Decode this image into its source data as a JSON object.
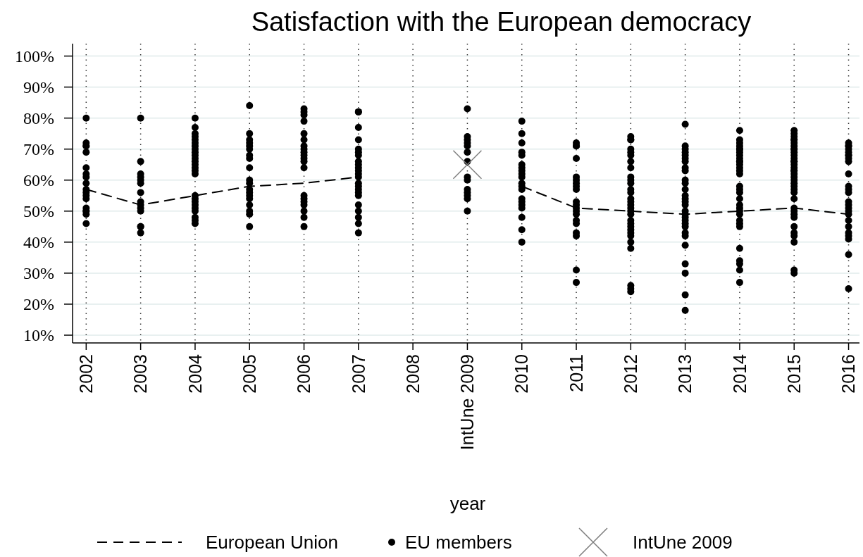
{
  "chart_data": {
    "type": "scatter",
    "title": "Satisfaction with the European democracy",
    "xlabel": "year",
    "x": [
      2002,
      2003,
      2004,
      2005,
      2006,
      2007,
      2008,
      2009,
      2010,
      2011,
      2012,
      2013,
      2014,
      2015,
      2016
    ],
    "xlim": [
      2001.75,
      2016.2
    ],
    "xticks": [
      2002,
      2003,
      2004,
      2005,
      2006,
      2007,
      2008,
      {
        "value": 2009,
        "label": "IntUne 2009"
      },
      2010,
      2011,
      2012,
      2013,
      2014,
      2015,
      2016
    ],
    "ylim": [
      7.5,
      104
    ],
    "yticks": [
      {
        "value": 10,
        "label": "10%"
      },
      {
        "value": 20,
        "label": "20%"
      },
      {
        "value": 30,
        "label": "30%"
      },
      {
        "value": 40,
        "label": "40%"
      },
      {
        "value": 50,
        "label": "50%"
      },
      {
        "value": 60,
        "label": "60%"
      },
      {
        "value": 70,
        "label": "70%"
      },
      {
        "value": 80,
        "label": "80%"
      },
      {
        "value": 90,
        "label": "90%"
      },
      {
        "value": 100,
        "label": "100%"
      }
    ],
    "grid": true,
    "legend": "bottom",
    "series": [
      {
        "name": "European Union",
        "type": "line",
        "color": "#000000",
        "line_style": "dashed",
        "marker": "none",
        "values": [
          57,
          52,
          55,
          58,
          59,
          61,
          null,
          null,
          58,
          51,
          50,
          49,
          50,
          51,
          49
        ]
      },
      {
        "name": "EU members",
        "color": "#000000",
        "marker": "circle",
        "x": [
          2002,
          2002,
          2002,
          2002,
          2002,
          2002,
          2002,
          2002,
          2002,
          2002,
          2002,
          2002,
          2002,
          2002,
          2002,
          2002,
          2002,
          2002,
          2003,
          2003,
          2003,
          2003,
          2003,
          2003,
          2003,
          2003,
          2003,
          2003,
          2003,
          2003,
          2003,
          2003,
          2004,
          2004,
          2004,
          2004,
          2004,
          2004,
          2004,
          2004,
          2004,
          2004,
          2004,
          2004,
          2004,
          2004,
          2004,
          2004,
          2004,
          2004,
          2004,
          2004,
          2004,
          2004,
          2004,
          2004,
          2004,
          2005,
          2005,
          2005,
          2005,
          2005,
          2005,
          2005,
          2005,
          2005,
          2005,
          2005,
          2005,
          2005,
          2005,
          2005,
          2005,
          2005,
          2005,
          2005,
          2006,
          2006,
          2006,
          2006,
          2006,
          2006,
          2006,
          2006,
          2006,
          2006,
          2006,
          2006,
          2006,
          2006,
          2006,
          2006,
          2006,
          2006,
          2006,
          2006,
          2007,
          2007,
          2007,
          2007,
          2007,
          2007,
          2007,
          2007,
          2007,
          2007,
          2007,
          2007,
          2007,
          2007,
          2007,
          2007,
          2007,
          2007,
          2007,
          2007,
          2007,
          2007,
          2007,
          2009,
          2009,
          2009,
          2009,
          2009,
          2009,
          2009,
          2009,
          2009,
          2009,
          2009,
          2009,
          2009,
          2009,
          2010,
          2010,
          2010,
          2010,
          2010,
          2010,
          2010,
          2010,
          2010,
          2010,
          2010,
          2010,
          2010,
          2010,
          2010,
          2010,
          2010,
          2010,
          2010,
          2010,
          2011,
          2011,
          2011,
          2011,
          2011,
          2011,
          2011,
          2011,
          2011,
          2011,
          2011,
          2011,
          2011,
          2011,
          2011,
          2011,
          2011,
          2011,
          2011,
          2011,
          2012,
          2012,
          2012,
          2012,
          2012,
          2012,
          2012,
          2012,
          2012,
          2012,
          2012,
          2012,
          2012,
          2012,
          2012,
          2012,
          2012,
          2012,
          2012,
          2012,
          2012,
          2012,
          2012,
          2012,
          2012,
          2012,
          2012,
          2012,
          2012,
          2012,
          2013,
          2013,
          2013,
          2013,
          2013,
          2013,
          2013,
          2013,
          2013,
          2013,
          2013,
          2013,
          2013,
          2013,
          2013,
          2013,
          2013,
          2013,
          2013,
          2013,
          2013,
          2013,
          2013,
          2013,
          2013,
          2013,
          2013,
          2013,
          2013,
          2014,
          2014,
          2014,
          2014,
          2014,
          2014,
          2014,
          2014,
          2014,
          2014,
          2014,
          2014,
          2014,
          2014,
          2014,
          2014,
          2014,
          2014,
          2014,
          2014,
          2014,
          2014,
          2014,
          2014,
          2014,
          2014,
          2014,
          2014,
          2014,
          2014,
          2014,
          2015,
          2015,
          2015,
          2015,
          2015,
          2015,
          2015,
          2015,
          2015,
          2015,
          2015,
          2015,
          2015,
          2015,
          2015,
          2015,
          2015,
          2015,
          2015,
          2015,
          2015,
          2015,
          2015,
          2015,
          2015,
          2015,
          2015,
          2015,
          2015,
          2015,
          2015,
          2015,
          2015,
          2015,
          2015,
          2015,
          2016,
          2016,
          2016,
          2016,
          2016,
          2016,
          2016,
          2016,
          2016,
          2016,
          2016,
          2016,
          2016,
          2016,
          2016,
          2016,
          2016,
          2016,
          2016,
          2016,
          2016,
          2016,
          2016,
          2016,
          2016
        ],
        "values": [
          80,
          72,
          71,
          71,
          69,
          64,
          62,
          61,
          59,
          57,
          56,
          55,
          54,
          51,
          50,
          50,
          49,
          46,
          80,
          66,
          62,
          61,
          60,
          59,
          56,
          53,
          52,
          51,
          50,
          45,
          45,
          43,
          80,
          77,
          75,
          74,
          73,
          72,
          71,
          70,
          69,
          68,
          67,
          66,
          65,
          64,
          63,
          62,
          55,
          54,
          53,
          52,
          51,
          50,
          48,
          47,
          46,
          84,
          75,
          73,
          72,
          71,
          70,
          68,
          67,
          64,
          60,
          59,
          57,
          56,
          55,
          54,
          52,
          50,
          49,
          45,
          83,
          82,
          81,
          79,
          75,
          73,
          71,
          70,
          69,
          68,
          67,
          66,
          64,
          55,
          54,
          53,
          52,
          50,
          48,
          45,
          82,
          82,
          77,
          73,
          70,
          69,
          68,
          66,
          65,
          64,
          63,
          62,
          61,
          59,
          58,
          57,
          56,
          55,
          52,
          50,
          48,
          46,
          43,
          83,
          74,
          73,
          72,
          71,
          69,
          66,
          61,
          60,
          57,
          56,
          55,
          54,
          50,
          79,
          75,
          72,
          69,
          68,
          65,
          64,
          63,
          62,
          61,
          59,
          58,
          57,
          54,
          53,
          52,
          51,
          48,
          44,
          40,
          72,
          71,
          71,
          67,
          61,
          60,
          59,
          58,
          57,
          53,
          52,
          51,
          50,
          49,
          47,
          46,
          43,
          42,
          31,
          27,
          74,
          73,
          73,
          70,
          69,
          68,
          66,
          64,
          61,
          60,
          59,
          57,
          56,
          54,
          53,
          52,
          51,
          50,
          49,
          47,
          46,
          45,
          44,
          43,
          42,
          40,
          38,
          26,
          25,
          24,
          78,
          71,
          70,
          69,
          68,
          67,
          66,
          64,
          63,
          60,
          59,
          57,
          55,
          54,
          53,
          52,
          50,
          49,
          48,
          47,
          46,
          45,
          43,
          42,
          39,
          33,
          30,
          23,
          18,
          76,
          73,
          72,
          71,
          70,
          70,
          69,
          68,
          67,
          66,
          66,
          65,
          64,
          63,
          62,
          58,
          57,
          56,
          54,
          52,
          51,
          50,
          49,
          47,
          46,
          45,
          38,
          34,
          33,
          31,
          27,
          76,
          75,
          74,
          73,
          73,
          72,
          71,
          70,
          70,
          69,
          68,
          67,
          66,
          66,
          65,
          64,
          63,
          63,
          62,
          61,
          60,
          59,
          58,
          57,
          56,
          54,
          51,
          50,
          49,
          48,
          45,
          43,
          42,
          40,
          31,
          30,
          72,
          71,
          71,
          70,
          69,
          68,
          68,
          67,
          66,
          62,
          58,
          57,
          56,
          53,
          52,
          51,
          50,
          49,
          47,
          45,
          43,
          42,
          41,
          36,
          25
        ]
      },
      {
        "name": "IntUne 2009",
        "color": "#808080",
        "marker": "cross",
        "x": [
          2009
        ],
        "values": [
          65
        ]
      }
    ]
  }
}
